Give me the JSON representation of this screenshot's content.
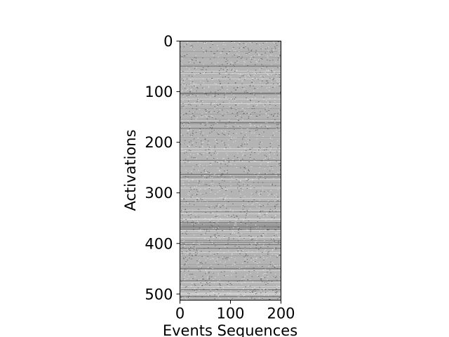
{
  "chart_data": {
    "type": "heatmap",
    "title": "",
    "xlabel": "Events Sequences",
    "ylabel": "Activations",
    "xlim": [
      0,
      200
    ],
    "ylim": [
      512,
      0
    ],
    "x_ticks": [
      0,
      100,
      200
    ],
    "x_tick_labels": [
      "0",
      "100",
      "200"
    ],
    "y_ticks": [
      0,
      100,
      200,
      300,
      400,
      500
    ],
    "y_tick_labels": [
      "0",
      "100",
      "200",
      "300",
      "400",
      "500"
    ],
    "n_rows": 512,
    "n_cols": 200,
    "colormap": "gray",
    "dominant_value_color": "#b4b4b4",
    "grid": false,
    "legend": "none"
  }
}
